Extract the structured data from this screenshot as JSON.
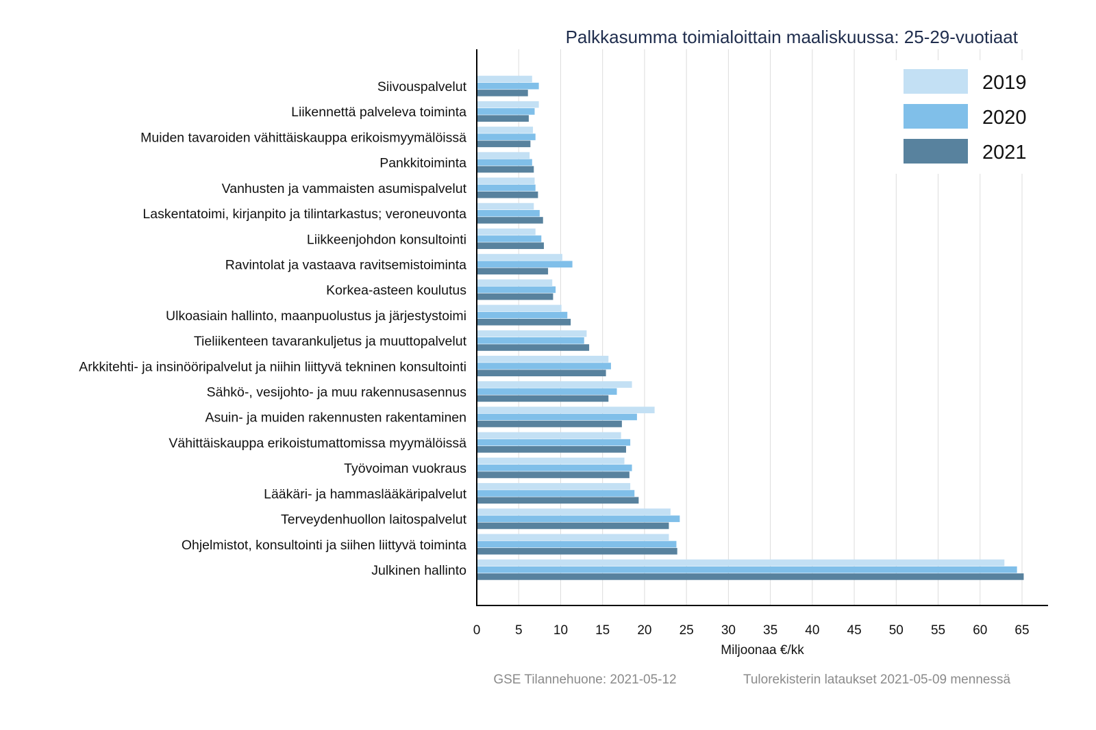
{
  "chart_data": {
    "type": "bar",
    "orientation": "horizontal",
    "title": "Palkkasumma toimialoittain maaliskuussa: 25-29-vuotiaat",
    "xlabel": "Miljoonaa €/kk",
    "ylabel": "",
    "xlim": [
      0,
      68
    ],
    "xticks": [
      0,
      5,
      10,
      15,
      20,
      25,
      30,
      35,
      40,
      45,
      50,
      55,
      60,
      65
    ],
    "grid": true,
    "legend_position": "top-right",
    "categories": [
      "Siivouspalvelut",
      "Liikennettä palveleva toiminta",
      "Muiden tavaroiden vähittäiskauppa erikoismyymälöissä",
      "Pankkitoiminta",
      "Vanhusten ja vammaisten asumispalvelut",
      "Laskentatoimi, kirjanpito ja tilintarkastus; veroneuvonta",
      "Liikkeenjohdon konsultointi",
      "Ravintolat ja vastaava ravitsemistoiminta",
      "Korkea-asteen koulutus",
      "Ulkoasiain hallinto, maanpuolustus ja järjestystoimi",
      "Tieliikenteen tavarankuljetus ja muuttopalvelut",
      "Arkkitehti- ja insinööripalvelut ja niihin liittyvä tekninen konsultointi",
      "Sähkö-, vesijohto- ja muu rakennusasennus",
      "Asuin- ja muiden rakennusten rakentaminen",
      "Vähittäiskauppa erikoistumattomissa myymälöissä",
      "Työvoiman vuokraus",
      "Lääkäri- ja hammaslääkäripalvelut",
      "Terveydenhuollon laitospalvelut",
      "Ohjelmistot, konsultointi ja siihen liittyvä toiminta",
      "Julkinen hallinto"
    ],
    "series": [
      {
        "name": "2019",
        "color": "#c3e0f4",
        "values": [
          6.6,
          7.4,
          6.7,
          6.3,
          6.9,
          6.8,
          7.0,
          10.2,
          9.0,
          10.1,
          13.1,
          15.7,
          18.5,
          21.2,
          17.2,
          17.6,
          18.3,
          23.1,
          22.9,
          62.9
        ]
      },
      {
        "name": "2020",
        "color": "#80bfe9",
        "values": [
          7.4,
          6.9,
          7.0,
          6.6,
          7.0,
          7.5,
          7.7,
          11.4,
          9.4,
          10.8,
          12.8,
          16.0,
          16.7,
          19.1,
          18.3,
          18.5,
          18.8,
          24.2,
          23.8,
          64.4
        ]
      },
      {
        "name": "2021",
        "color": "#58829e",
        "values": [
          6.1,
          6.2,
          6.4,
          6.8,
          7.3,
          7.9,
          8.0,
          8.5,
          9.1,
          11.2,
          13.4,
          15.4,
          15.7,
          17.3,
          17.8,
          18.2,
          19.3,
          22.9,
          23.9,
          65.2
        ]
      }
    ]
  },
  "footer": {
    "source": "GSE Tilannehuone: 2021-05-12",
    "note": "Tulorekisterin lataukset 2021-05-09 mennessä"
  }
}
